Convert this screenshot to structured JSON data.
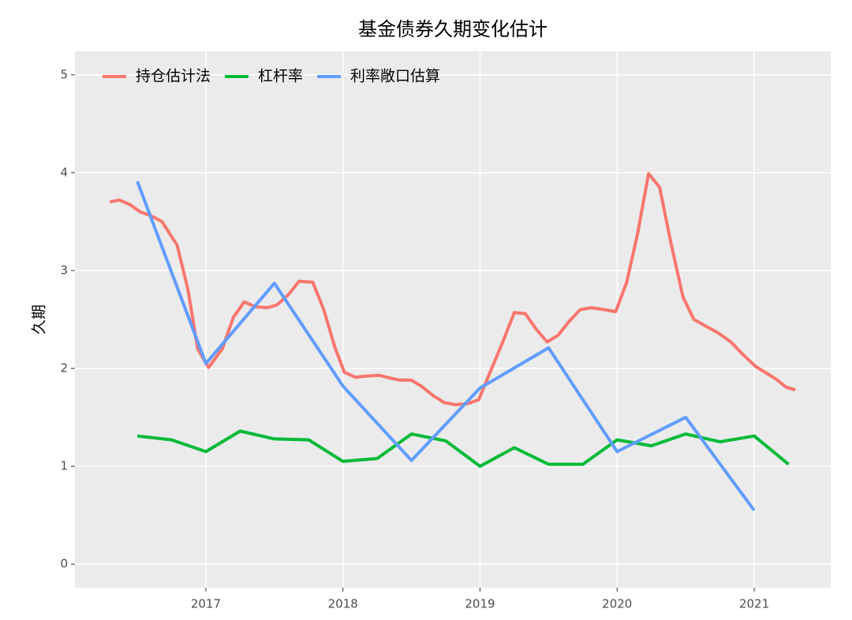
{
  "chart_data": {
    "type": "line",
    "title": "基金债券久期变化估计",
    "y_label": "久期",
    "xlim": [
      2016.045,
      2021.558
    ],
    "xticks": [
      2017,
      2018,
      2019,
      2020,
      2021
    ],
    "ylim": [
      -0.24,
      5.24
    ],
    "yticks": [
      0,
      1,
      2,
      3,
      4,
      5
    ],
    "grid": true,
    "legend": "top-left",
    "series": [
      {
        "name": "持仓估计法",
        "color": "#f8766d",
        "x": [
          2016.3,
          2016.37,
          2016.45,
          2016.52,
          2016.6,
          2016.68,
          2016.79,
          2016.87,
          2016.94,
          2017.02,
          2017.12,
          2017.2,
          2017.28,
          2017.36,
          2017.45,
          2017.52,
          2017.6,
          2017.68,
          2017.78,
          2017.86,
          2017.94,
          2018.01,
          2018.09,
          2018.16,
          2018.26,
          2018.35,
          2018.42,
          2018.5,
          2018.58,
          2018.66,
          2018.74,
          2018.82,
          2018.91,
          2018.99,
          2019.07,
          2019.16,
          2019.25,
          2019.33,
          2019.41,
          2019.49,
          2019.57,
          2019.65,
          2019.73,
          2019.81,
          2019.91,
          2019.99,
          2020.07,
          2020.15,
          2020.23,
          2020.31,
          2020.39,
          2020.48,
          2020.56,
          2020.65,
          2020.74,
          2020.83,
          2020.92,
          2021.01,
          2021.08,
          2021.16,
          2021.23,
          2021.3
        ],
        "values": [
          3.7,
          3.72,
          3.67,
          3.6,
          3.56,
          3.5,
          3.26,
          2.8,
          2.2,
          2.01,
          2.2,
          2.52,
          2.68,
          2.63,
          2.62,
          2.65,
          2.75,
          2.89,
          2.88,
          2.6,
          2.22,
          1.96,
          1.91,
          1.92,
          1.93,
          1.9,
          1.88,
          1.88,
          1.81,
          1.72,
          1.65,
          1.63,
          1.64,
          1.68,
          1.95,
          2.25,
          2.57,
          2.56,
          2.4,
          2.27,
          2.34,
          2.48,
          2.6,
          2.62,
          2.6,
          2.58,
          2.88,
          3.38,
          3.99,
          3.85,
          3.3,
          2.73,
          2.5,
          2.43,
          2.36,
          2.27,
          2.14,
          2.02,
          1.96,
          1.89,
          1.81,
          1.78
        ]
      },
      {
        "name": "杠杆率",
        "color": "#00ba38",
        "x": [
          2016.5,
          2016.75,
          2017.0,
          2017.25,
          2017.5,
          2017.75,
          2018.0,
          2018.25,
          2018.5,
          2018.75,
          2019.0,
          2019.25,
          2019.5,
          2019.75,
          2020.0,
          2020.25,
          2020.5,
          2020.75,
          2021.0,
          2021.25
        ],
        "values": [
          1.31,
          1.27,
          1.15,
          1.36,
          1.28,
          1.27,
          1.05,
          1.08,
          1.33,
          1.26,
          1.0,
          1.19,
          1.02,
          1.02,
          1.27,
          1.21,
          1.33,
          1.25,
          1.31,
          1.02
        ]
      },
      {
        "name": "利率敞口估算",
        "color": "#619cff",
        "x": [
          2016.5,
          2017.0,
          2017.5,
          2018.0,
          2018.5,
          2019.0,
          2019.5,
          2020.0,
          2020.5,
          2021.0
        ],
        "values": [
          3.91,
          2.05,
          2.87,
          1.82,
          1.06,
          1.8,
          2.21,
          1.15,
          1.5,
          0.55
        ]
      }
    ]
  }
}
